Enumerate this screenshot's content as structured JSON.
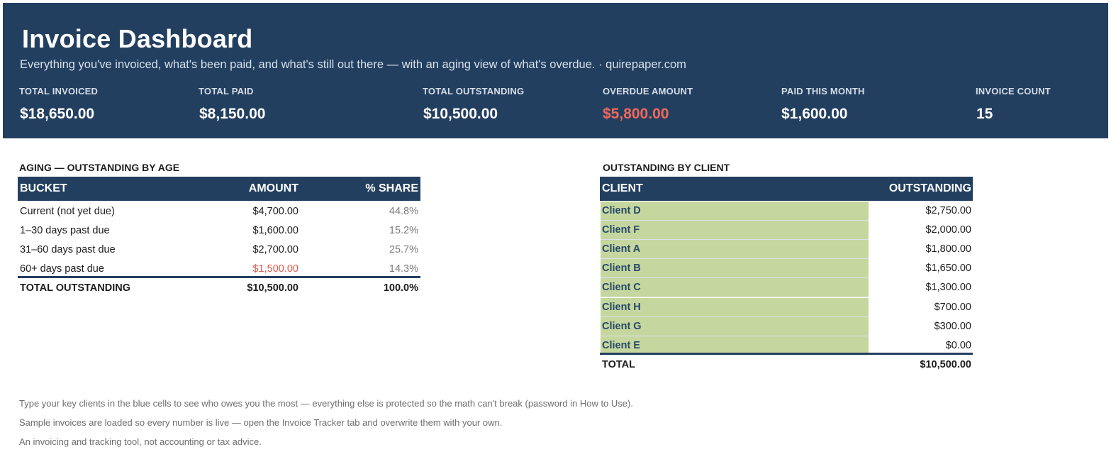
{
  "header": {
    "title": "Invoice Dashboard",
    "subtitle": "Everything you've invoiced, what's been paid, and what's still out there — with an aging view of what's overdue.  ·  quirepaper.com"
  },
  "kpis": [
    {
      "label": "TOTAL INVOICED",
      "value": "$18,650.00"
    },
    {
      "label": "TOTAL PAID",
      "value": "$8,150.00"
    },
    {
      "label": "TOTAL OUTSTANDING",
      "value": "$10,500.00"
    },
    {
      "label": "OVERDUE AMOUNT",
      "value": "$5,800.00"
    },
    {
      "label": "PAID THIS MONTH",
      "value": "$1,600.00"
    },
    {
      "label": "INVOICE COUNT",
      "value": "15"
    }
  ],
  "aging": {
    "title": "AGING — OUTSTANDING BY AGE",
    "columns": [
      "BUCKET",
      "AMOUNT",
      "% SHARE"
    ],
    "rows": [
      {
        "bucket": "Current (not yet due)",
        "amount": "$4,700.00",
        "share": "44.8%"
      },
      {
        "bucket": "1–30 days past due",
        "amount": "$1,600.00",
        "share": "15.2%"
      },
      {
        "bucket": "31–60 days past due",
        "amount": "$2,700.00",
        "share": "25.7%"
      },
      {
        "bucket": "60+ days past due",
        "amount": "$1,500.00",
        "share": "14.3%"
      }
    ],
    "total": {
      "label": "TOTAL OUTSTANDING",
      "amount": "$10,500.00",
      "share": "100.0%"
    }
  },
  "by_client": {
    "title": "OUTSTANDING BY CLIENT",
    "columns": [
      "CLIENT",
      "OUTSTANDING"
    ],
    "rows": [
      {
        "client": "Client D",
        "amount": "$2,750.00"
      },
      {
        "client": "Client F",
        "amount": "$2,000.00"
      },
      {
        "client": "Client A",
        "amount": "$1,800.00"
      },
      {
        "client": "Client B",
        "amount": "$1,650.00"
      },
      {
        "client": "Client C",
        "amount": "$1,300.00"
      },
      {
        "client": "Client H",
        "amount": "$700.00"
      },
      {
        "client": "Client G",
        "amount": "$300.00"
      },
      {
        "client": "Client E",
        "amount": "$0.00"
      }
    ],
    "total": {
      "label": "TOTAL",
      "amount": "$10,500.00"
    }
  },
  "notes": [
    "Type your key clients in the blue cells to see who owes you the most — everything else is protected so the math can't break (password in How to Use).",
    "Sample invoices are loaded so every number is live — open the Invoice Tracker tab and overwrite them with your own.",
    "An invoicing and tracking tool, not accounting or tax advice."
  ],
  "colors": {
    "header_bg": "#233f60",
    "overdue_red": "#f0685a",
    "client_cell_bg": "#c5d79e"
  }
}
